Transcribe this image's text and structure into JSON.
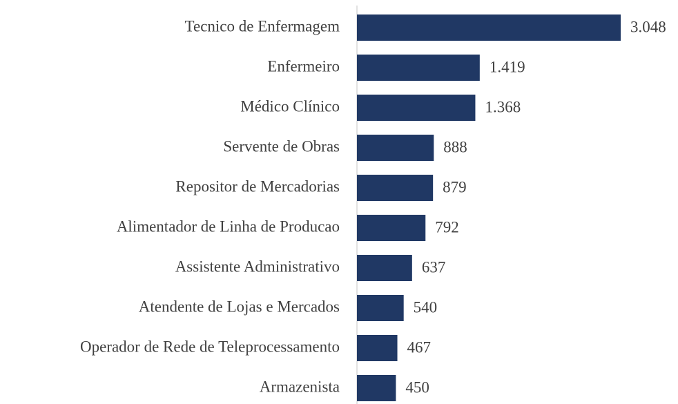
{
  "chart_data": {
    "type": "bar",
    "orientation": "horizontal",
    "categories": [
      "Tecnico de Enfermagem",
      "Enfermeiro",
      "Médico Clínico",
      "Servente de Obras",
      "Repositor de Mercadorias",
      "Alimentador de Linha de Producao",
      "Assistente Administrativo",
      "Atendente de Lojas e Mercados",
      "Operador de Rede de Teleprocessamento",
      "Armazenista"
    ],
    "values": [
      3048,
      1419,
      1368,
      888,
      879,
      792,
      637,
      540,
      467,
      450
    ],
    "value_labels": [
      "3.048",
      "1.419",
      "1.368",
      "888",
      "879",
      "792",
      "637",
      "540",
      "467",
      "450"
    ],
    "color": "#203864"
  }
}
